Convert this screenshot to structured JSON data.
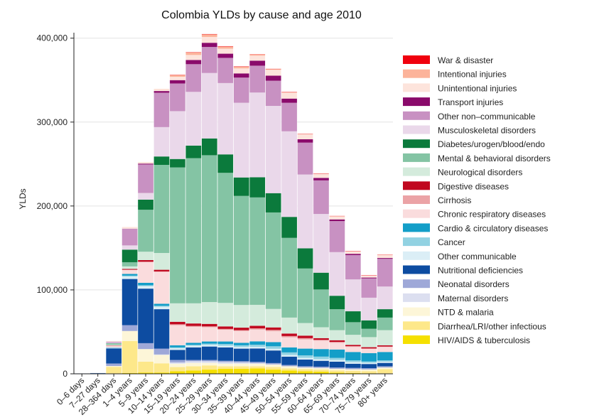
{
  "chart_data": {
    "type": "bar",
    "stacked": true,
    "title": "Colombia YLDs by cause and age 2010",
    "xlabel": "",
    "ylabel": "YLDs",
    "ylim": [
      0,
      400000
    ],
    "yticks": [
      0,
      100000,
      200000,
      300000,
      400000
    ],
    "ytick_labels": [
      "0",
      "100,000",
      "200,000",
      "300,000",
      "400,000"
    ],
    "grid": true,
    "legend_position": "right",
    "categories": [
      "0–6 days",
      "7–27 days",
      "28–364 days",
      "1–4 years",
      "5–9 years",
      "10–14 years",
      "15–19 years",
      "20–24 years",
      "25–29 years",
      "30–34 years",
      "35–39 years",
      "40–44 years",
      "45–49 years",
      "50–54 years",
      "55–59 years",
      "60–64 years",
      "65–69 years",
      "70–74 years",
      "75–79 years",
      "80+ years"
    ],
    "series": [
      {
        "name": "HIV/AIDS & tuberculosis",
        "color": "#f5e000",
        "values": [
          0,
          0,
          300,
          1000,
          1500,
          1500,
          3000,
          4000,
          5000,
          6000,
          6000,
          6500,
          5000,
          4000,
          3000,
          2500,
          1500,
          1000,
          700,
          500
        ]
      },
      {
        "name": "Diarrhea/LRI/other infectious",
        "color": "#fde88a",
        "values": [
          300,
          300,
          8000,
          38000,
          13000,
          11000,
          5000,
          5000,
          5000,
          3000,
          3000,
          2500,
          3000,
          2500,
          2500,
          2500,
          2500,
          2500,
          2500,
          5000
        ]
      },
      {
        "name": "NTD & malaria",
        "color": "#fdf6d8",
        "values": [
          0,
          0,
          1000,
          12000,
          15000,
          10000,
          4000,
          4000,
          3000,
          3000,
          3000,
          3000,
          3000,
          2500,
          2000,
          2000,
          2000,
          2000,
          2000,
          2000
        ]
      },
      {
        "name": "Maternal disorders",
        "color": "#dcdff0",
        "values": [
          0,
          0,
          0,
          0,
          0,
          500,
          1500,
          2000,
          2000,
          2000,
          1500,
          700,
          300,
          0,
          0,
          0,
          0,
          0,
          0,
          0
        ]
      },
      {
        "name": "Neonatal disorders",
        "color": "#9ea8d8",
        "values": [
          100,
          300,
          3000,
          7000,
          7000,
          7000,
          3000,
          1500,
          1500,
          1500,
          1500,
          1500,
          1500,
          1500,
          1500,
          1500,
          1500,
          1500,
          1500,
          1500
        ]
      },
      {
        "name": "Nutritional deficiencies",
        "color": "#0d4ca1",
        "values": [
          100,
          300,
          18000,
          55000,
          65000,
          47000,
          12000,
          15000,
          16000,
          16000,
          15000,
          16000,
          15000,
          10000,
          8000,
          7000,
          7000,
          5000,
          5000,
          4000
        ]
      },
      {
        "name": "Other communicable",
        "color": "#dbeef6",
        "values": [
          0,
          0,
          1000,
          3000,
          3000,
          3000,
          2000,
          2000,
          2000,
          2000,
          2000,
          2000,
          2000,
          2000,
          2000,
          2000,
          2000,
          2000,
          1500,
          1500
        ]
      },
      {
        "name": "Cancer",
        "color": "#92d2e2",
        "values": [
          0,
          0,
          0,
          1000,
          1000,
          1000,
          1000,
          1000,
          1500,
          2000,
          2000,
          2500,
          3000,
          3000,
          3000,
          3000,
          2500,
          2000,
          1500,
          1500
        ]
      },
      {
        "name": "Cardio & circulatory diseases",
        "color": "#139ec8",
        "values": [
          0,
          0,
          200,
          2000,
          3000,
          2500,
          2500,
          2500,
          2500,
          3000,
          3000,
          4000,
          5000,
          6000,
          8000,
          9000,
          10000,
          10000,
          10000,
          10000
        ]
      },
      {
        "name": "Chronic respiratory diseases",
        "color": "#fadcdd",
        "values": [
          0,
          0,
          2000,
          5000,
          25000,
          38000,
          24000,
          19000,
          17000,
          14000,
          14000,
          14000,
          13000,
          12000,
          11000,
          10000,
          8000,
          6000,
          5000,
          6000
        ]
      },
      {
        "name": "Cirrhosis",
        "color": "#eba3a6",
        "values": [
          0,
          0,
          0,
          0,
          0,
          500,
          1000,
          1000,
          1000,
          1000,
          1000,
          1500,
          1500,
          1500,
          1500,
          1000,
          1000,
          1000,
          500,
          500
        ]
      },
      {
        "name": "Digestive diseases",
        "color": "#c0081f",
        "values": [
          0,
          0,
          200,
          1000,
          2000,
          2000,
          3000,
          3000,
          3000,
          3000,
          3000,
          3000,
          3000,
          3000,
          3000,
          2000,
          2000,
          1500,
          1500,
          1500
        ]
      },
      {
        "name": "Neurological disorders",
        "color": "#d4ebdc",
        "values": [
          0,
          0,
          1000,
          3000,
          10000,
          20000,
          22000,
          24000,
          26000,
          28000,
          27000,
          25000,
          22000,
          19000,
          15000,
          13000,
          12000,
          12000,
          12000,
          18000
        ]
      },
      {
        "name": "Mental & behavioral disorders",
        "color": "#84c4a4",
        "values": [
          0,
          0,
          1000,
          5000,
          50000,
          105000,
          162000,
          173000,
          175000,
          155000,
          130000,
          128000,
          115000,
          95000,
          65000,
          45000,
          25000,
          15000,
          10000,
          15000
        ]
      },
      {
        "name": "Diabetes/urogen/blood/endo",
        "color": "#0b7a3c",
        "values": [
          0,
          0,
          500,
          15000,
          12000,
          10000,
          10000,
          15000,
          20000,
          22000,
          22000,
          24000,
          23000,
          25000,
          24000,
          20000,
          16000,
          13000,
          10000,
          10000
        ]
      },
      {
        "name": "Musculoskeletal disorders",
        "color": "#ead8ea",
        "values": [
          0,
          0,
          1000,
          5000,
          8000,
          35000,
          57000,
          64000,
          78000,
          85000,
          89000,
          101000,
          104000,
          102000,
          88000,
          70000,
          52000,
          38000,
          27000,
          27000
        ]
      },
      {
        "name": "Other non–communicable",
        "color": "#c891c2",
        "values": [
          0,
          0,
          1000,
          20000,
          34000,
          41000,
          33000,
          33000,
          31000,
          30000,
          30000,
          32000,
          30000,
          34000,
          38000,
          40000,
          37000,
          29000,
          23000,
          33000
        ]
      },
      {
        "name": "Transport injuries",
        "color": "#8a0a6b",
        "values": [
          0,
          0,
          0,
          0,
          1000,
          2000,
          4000,
          5000,
          5000,
          5000,
          5000,
          6000,
          6000,
          5000,
          4000,
          3000,
          2000,
          1500,
          1000,
          1000
        ]
      },
      {
        "name": "Unintentional injuries",
        "color": "#fde4dc",
        "values": [
          0,
          0,
          1000,
          2000,
          2000,
          2000,
          4000,
          6000,
          7000,
          6000,
          6000,
          6000,
          7000,
          7000,
          6000,
          5000,
          4000,
          3000,
          2500,
          4000
        ]
      },
      {
        "name": "Intentional injuries",
        "color": "#fcb39a",
        "values": [
          0,
          0,
          0,
          0,
          0,
          500,
          2000,
          3000,
          3000,
          2500,
          2000,
          1500,
          1000,
          700,
          500,
          300,
          200,
          100,
          100,
          100
        ]
      },
      {
        "name": "War & disaster",
        "color": "#f0000e",
        "values": [
          0,
          0,
          0,
          0,
          0,
          0,
          500,
          500,
          500,
          500,
          500,
          300,
          300,
          200,
          200,
          100,
          100,
          100,
          100,
          100
        ]
      }
    ]
  }
}
